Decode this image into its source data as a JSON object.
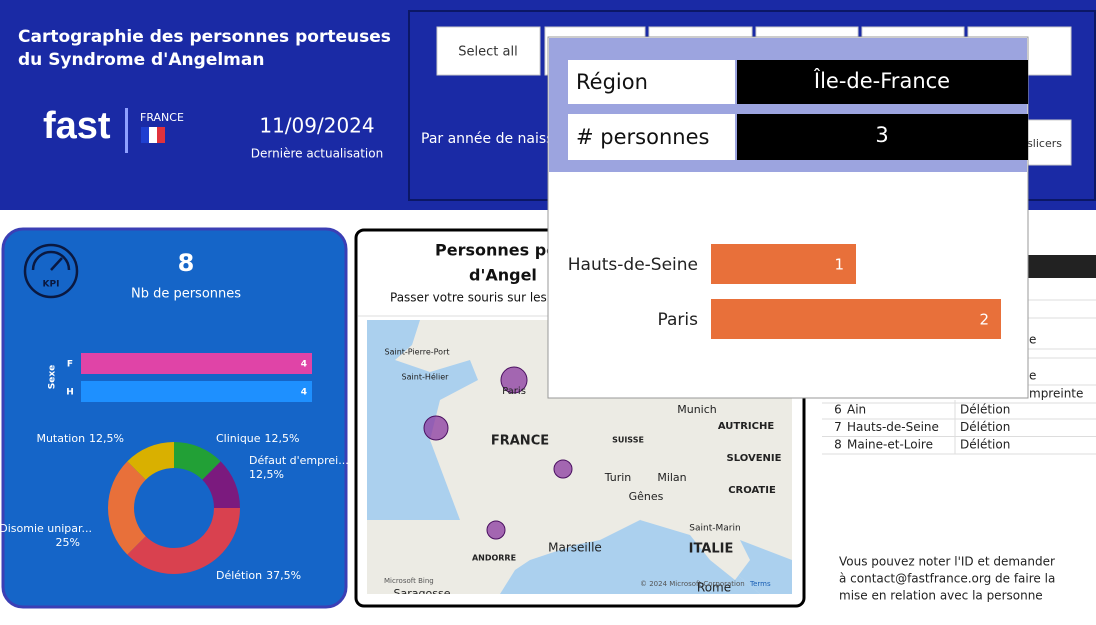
{
  "header": {
    "title_lines": [
      "Cartographie des personnes porteuses",
      "du Syndrome d'Angelman"
    ],
    "logo": "fast",
    "logo_country": "FRANCE",
    "date": "11/09/2024",
    "date_caption": "Dernière actualisation"
  },
  "slicer": {
    "buttons": [
      "Select all"
    ],
    "label": "Par année de naissance",
    "reset": "slicers"
  },
  "tooltip": {
    "fields": [
      {
        "label": "Région",
        "value": "Île-de-France"
      },
      {
        "label": "# personnes",
        "value": "3"
      }
    ]
  },
  "kpi": {
    "icon": "KPI",
    "value": "8",
    "caption": "Nb de personnes"
  },
  "map": {
    "title_lines": [
      "Personnes po",
      "d'Angel"
    ],
    "subtitle": "Passer votre souris sur les",
    "labels": [
      "Saint-Pierre-Port",
      "Saint-Hélier",
      "Paris",
      "FRANCE",
      "SUISSE",
      "Munich",
      "AUTRICHE",
      "SLOVENIE",
      "CROATIE",
      "Turin",
      "Milan",
      "Gênes",
      "Saint-Marin",
      "ITALIE",
      "Marseille",
      "ANDORRE",
      "Rome",
      "Saragosse"
    ],
    "bing": "Microsoft Bing",
    "credit": "© 2024 Microsoft Corporation",
    "terms": "Terms"
  },
  "table": {
    "fragments": [
      "e",
      "e",
      "mpreinte"
    ],
    "rows": [
      [
        "6",
        "Ain",
        "Délétion"
      ],
      [
        "7",
        "Hauts-de-Seine",
        "Délétion"
      ],
      [
        "8",
        "Maine-et-Loire",
        "Délétion"
      ]
    ]
  },
  "note": {
    "lines": [
      "Vous pouvez noter l'ID et demander",
      "à contact@fastfrance.org de faire la",
      "mise en relation avec la personne"
    ]
  },
  "chart_data": [
    {
      "type": "bar",
      "orientation": "horizontal",
      "categories": [
        "Hauts-de-Seine",
        "Paris"
      ],
      "values": [
        1,
        2
      ],
      "color": "#e8703a"
    },
    {
      "type": "bar",
      "orientation": "horizontal",
      "y_label": "Sexe",
      "categories": [
        "F",
        "H"
      ],
      "values": [
        4,
        4
      ],
      "colors": [
        "#e044a7",
        "#1e90ff"
      ]
    },
    {
      "type": "donut",
      "categories": [
        "Clinique",
        "Défaut d'emprei...",
        "Délétion",
        "Disomie unipar...",
        "Mutation"
      ],
      "values": [
        12.5,
        12.5,
        37.5,
        25,
        12.5
      ],
      "value_labels": [
        "12,5%",
        "12,5%",
        "37,5%",
        "25%",
        "12,5%"
      ],
      "colors": [
        "#22a036",
        "#7b1a7e",
        "#d9414f",
        "#e8703a",
        "#d9b000"
      ]
    }
  ]
}
